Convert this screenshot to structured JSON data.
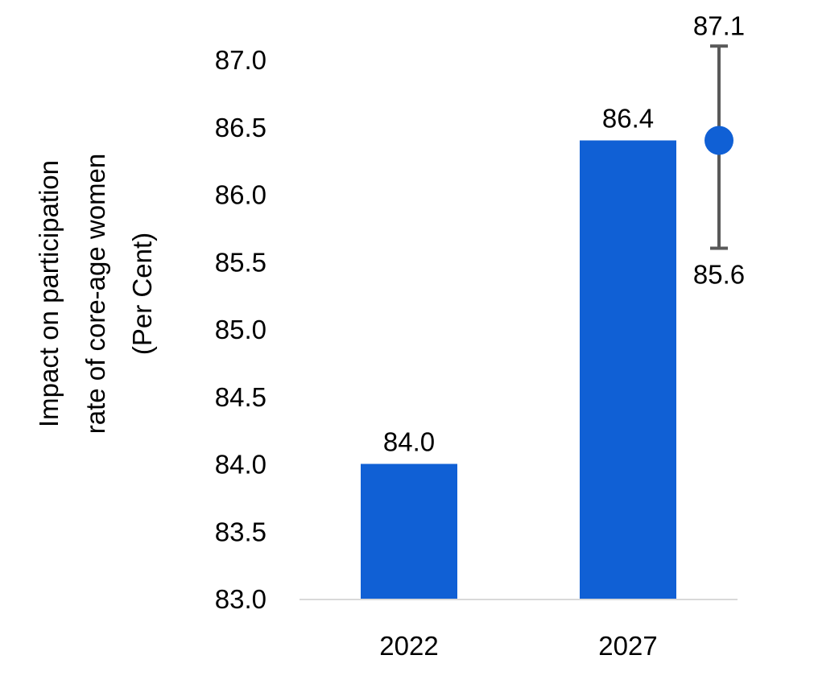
{
  "chart_data": {
    "type": "bar",
    "categories": [
      "2022",
      "2027"
    ],
    "values": [
      84.0,
      86.4
    ],
    "value_labels": [
      "84.0",
      "86.4"
    ],
    "ylabel_lines": [
      "Impact on participation",
      "rate of core-age women",
      "(Per Cent)"
    ],
    "ylim": [
      83.0,
      87.0
    ],
    "yticks": [
      "83.0",
      "83.5",
      "84.0",
      "84.5",
      "85.0",
      "85.5",
      "86.0",
      "86.5",
      "87.0"
    ],
    "grid": false,
    "estimate": {
      "category": "2027",
      "point": 86.4,
      "upper": 87.1,
      "lower": 85.6,
      "upper_label": "87.1",
      "lower_label": "85.6"
    },
    "colors": {
      "bar": "#1060D5",
      "point": "#1060D5",
      "error_bar": "#595959",
      "axis": "#D9D9D9"
    }
  }
}
